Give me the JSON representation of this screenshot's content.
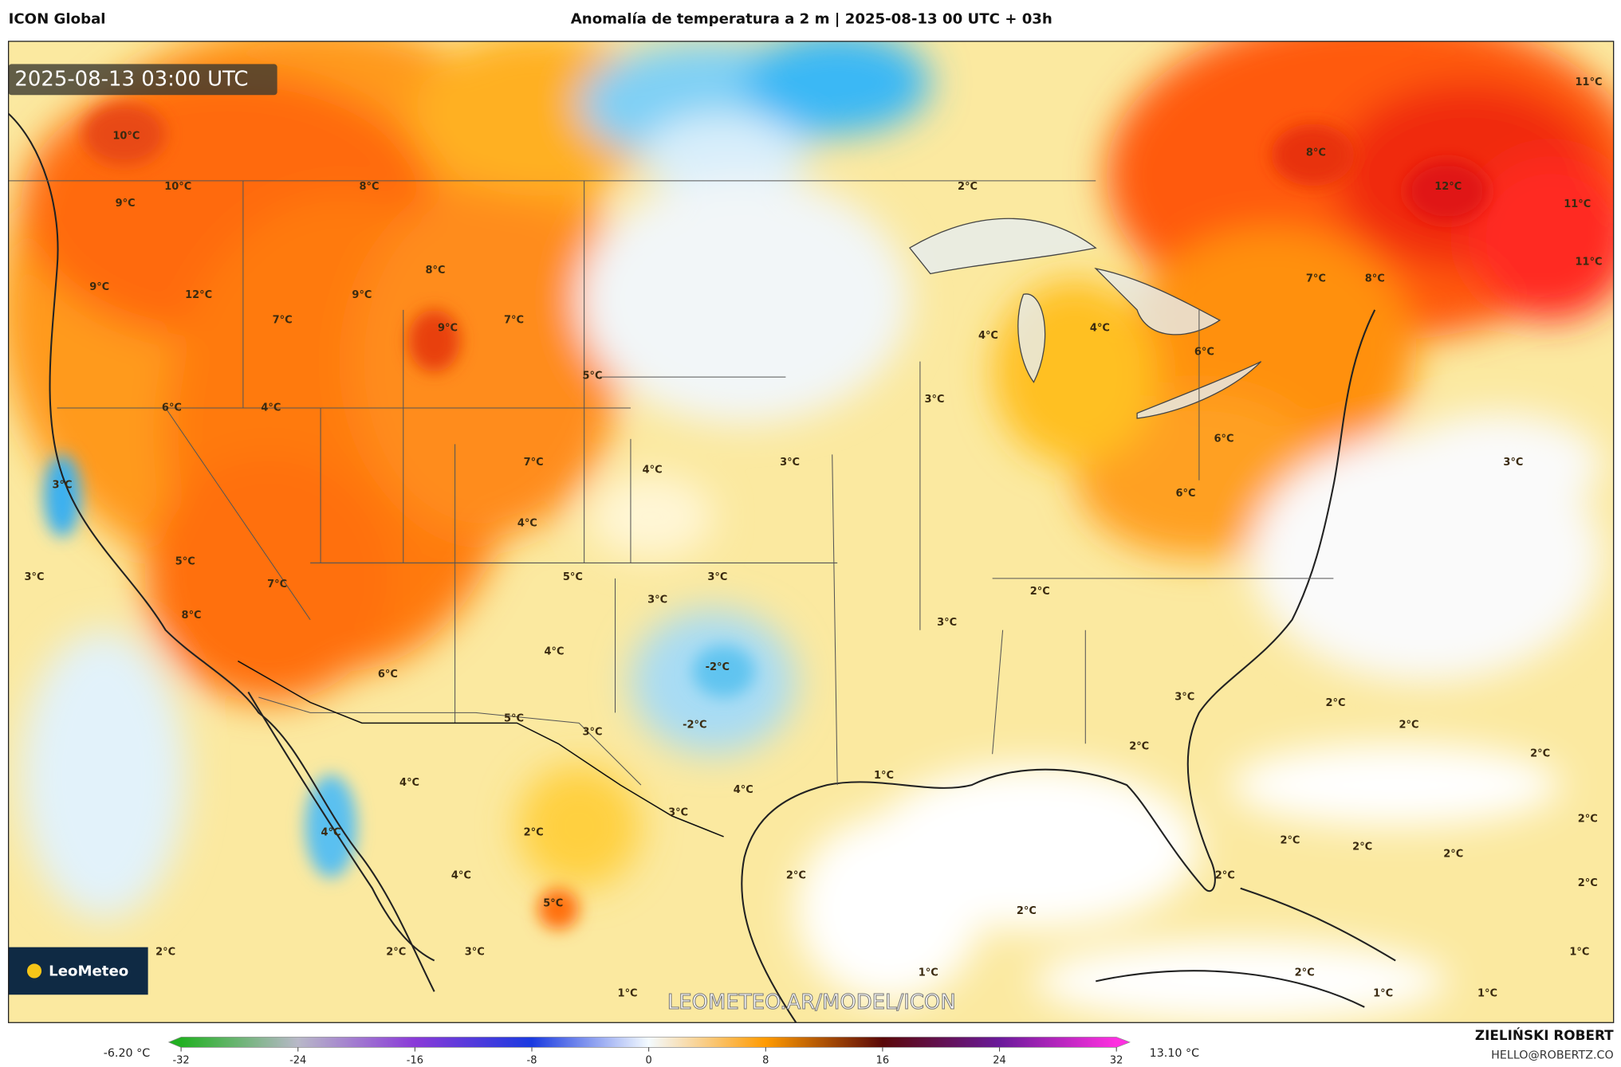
{
  "header": {
    "model": "ICON Global",
    "title": "Anomalía de temperatura a 2 m | 2025-08-13 00 UTC + 03h"
  },
  "map": {
    "timestamp": "2025-08-13 03:00 UTC",
    "watermark": "LEOMETEO.AR/MODEL/ICON",
    "logo": "LeoMeteo",
    "labels": [
      "10°C",
      "10°C",
      "9°C",
      "8°C",
      "9°C",
      "12°C",
      "9°C",
      "8°C",
      "7°C",
      "9°C",
      "7°C",
      "6°C",
      "4°C",
      "5°C",
      "7°C",
      "4°C",
      "4°C",
      "3°C",
      "5°C",
      "7°C",
      "8°C",
      "3°C",
      "5°C",
      "3°C",
      "3°C",
      "4°C",
      "6°C",
      "-2°C",
      "-2°C",
      "5°C",
      "3°C",
      "4°C",
      "4°C",
      "4°C",
      "3°C",
      "2°C",
      "4°C",
      "5°C",
      "2°C",
      "2°C",
      "3°C",
      "1°C",
      "2°C",
      "1°C",
      "2°C",
      "1°C",
      "2°C",
      "4°C",
      "4°C",
      "3°C",
      "6°C",
      "6°C",
      "6°C",
      "3°C",
      "2°C",
      "3°C",
      "2°C",
      "2°C",
      "2°C",
      "2°C",
      "2°C",
      "2°C",
      "2°C",
      "2°C",
      "2°C",
      "2°C",
      "2°C",
      "1°C",
      "1°C",
      "1°C",
      "3°C",
      "8°C",
      "12°C",
      "7°C",
      "8°C",
      "11°C",
      "11°C",
      "11°C",
      "3°C"
    ]
  },
  "colorbar": {
    "min_label": "-6.20 °C",
    "max_label": "13.10 °C",
    "ticks": [
      -32,
      -24,
      -16,
      -8,
      0,
      8,
      16,
      24,
      32
    ],
    "colors": [
      "#22b022",
      "#b8b8c8",
      "#8a3ad8",
      "#1a3ae0",
      "#f4fbff",
      "#ff9a00",
      "#5a0808",
      "#6a1a9a",
      "#ff30e0"
    ]
  },
  "footer": {
    "author": "ZIELIŃSKI ROBERT",
    "email": "HELLO@ROBERTZ.CO"
  }
}
